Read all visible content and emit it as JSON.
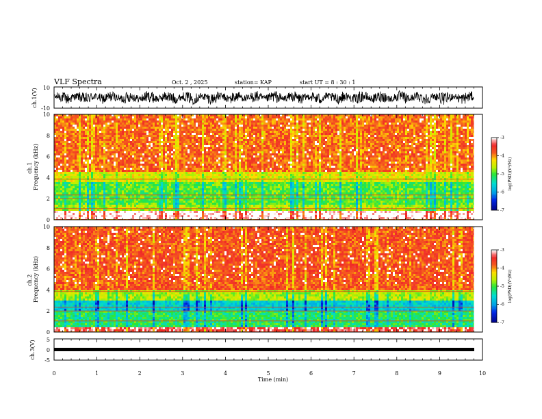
{
  "header": {
    "title": "VLF Spectra",
    "date": "Oct. 2 , 2025",
    "station": "station= KAP",
    "start_ut": "start UT = 8 : 30 : 1"
  },
  "chart_data": [
    {
      "type": "line",
      "name": "ch1-waveform",
      "ylabel": "ch.1(V)",
      "ylim": [
        -10,
        10
      ],
      "yticks": [
        "10",
        "-10"
      ],
      "xlim": [
        0,
        10
      ],
      "note": "dense noisy waveform, roughly between -7 and 7 V, centered near 0"
    },
    {
      "type": "heatmap",
      "name": "ch1-spectrogram",
      "ylabel": "ch.1 Frequency (kHz)",
      "ylim": [
        0,
        10
      ],
      "yticks": [
        "0",
        "2",
        "4",
        "6",
        "8",
        "10"
      ],
      "xlim": [
        0,
        10
      ],
      "data_end_min": 9.8,
      "bands_khz": [
        {
          "from": 0,
          "to": 0.8,
          "level": -2.9
        },
        {
          "from": 0.8,
          "to": 1.5,
          "level": -4.6
        },
        {
          "from": 1.5,
          "to": 3.5,
          "level": -4.9
        },
        {
          "from": 3.5,
          "to": 4.6,
          "level": -4.4
        },
        {
          "from": 4.6,
          "to": 10,
          "level": -3.8
        }
      ],
      "colorbar": {
        "label": "log(PSD)(V²/Hz)",
        "min": -7,
        "max": -3,
        "ticks": [
          "-3",
          "-4",
          "-5",
          "-6",
          "-7"
        ]
      }
    },
    {
      "type": "heatmap",
      "name": "ch2-spectrogram",
      "ylabel": "ch.2 Frequency (kHz)",
      "ylim": [
        0,
        10
      ],
      "yticks": [
        "0",
        "2",
        "4",
        "6",
        "8",
        "10"
      ],
      "xlim": [
        0,
        10
      ],
      "data_end_min": 9.8,
      "bands_khz": [
        {
          "from": 0,
          "to": 0.5,
          "level": -3.2
        },
        {
          "from": 0.5,
          "to": 2.0,
          "level": -5.1
        },
        {
          "from": 2.0,
          "to": 3.0,
          "level": -5.6
        },
        {
          "from": 3.0,
          "to": 4.0,
          "level": -4.6
        },
        {
          "from": 4.0,
          "to": 10,
          "level": -3.7
        }
      ],
      "colorbar": {
        "label": "log(PSD)(V²/Hz)",
        "min": -7,
        "max": -3,
        "ticks": [
          "-3",
          "-4",
          "-5",
          "-6",
          "-7"
        ]
      }
    },
    {
      "type": "line",
      "name": "ch3-waveform",
      "ylabel": "ch.3(V)",
      "ylim": [
        -5,
        5
      ],
      "yticks": [
        "5",
        "0",
        "-5"
      ],
      "xlim": [
        0,
        10
      ],
      "note": "thick flat trace near -0.5 V"
    }
  ],
  "xaxis": {
    "label": "Time (min)",
    "ticks": [
      "0",
      "1",
      "2",
      "3",
      "4",
      "5",
      "6",
      "7",
      "8",
      "9",
      "10"
    ]
  },
  "colors": {
    "axis": "#000000",
    "background": "#ffffff"
  }
}
